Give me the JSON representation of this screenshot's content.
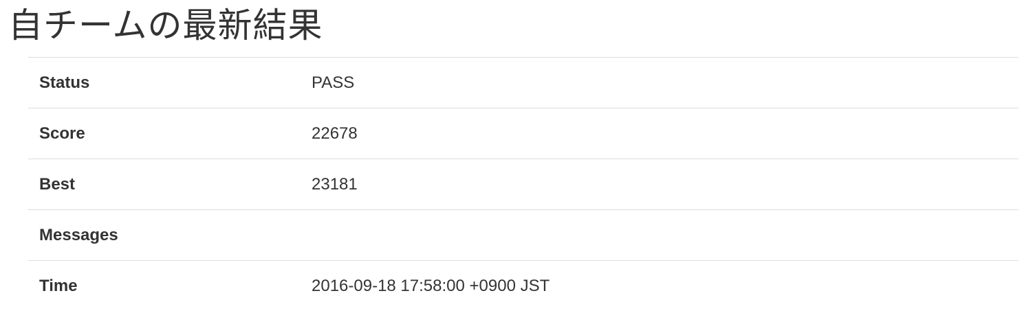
{
  "page": {
    "title": "自チームの最新結果"
  },
  "results": {
    "status": {
      "label": "Status",
      "value": "PASS"
    },
    "score": {
      "label": "Score",
      "value": "22678"
    },
    "best": {
      "label": "Best",
      "value": "23181"
    },
    "messages": {
      "label": "Messages",
      "value": ""
    },
    "time": {
      "label": "Time",
      "value": "2016-09-18 17:58:00 +0900 JST"
    }
  }
}
